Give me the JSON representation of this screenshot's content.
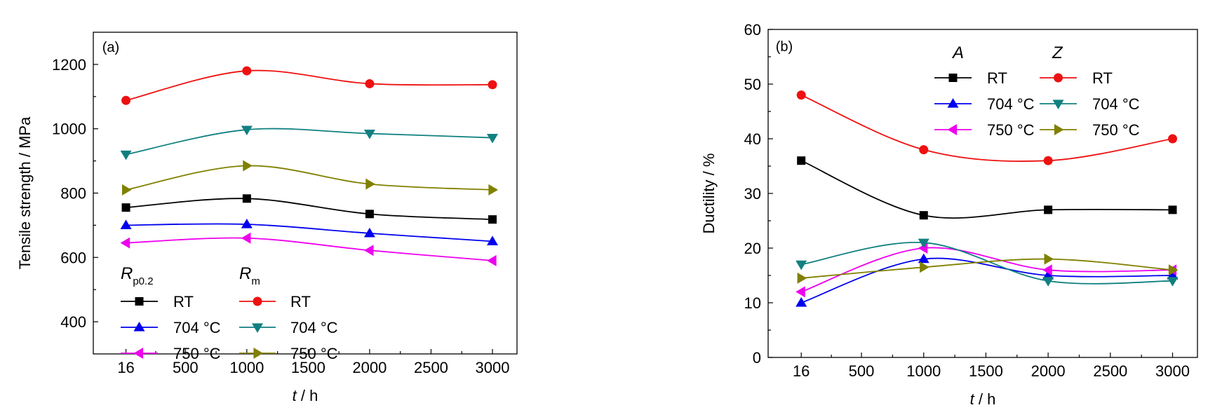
{
  "chart_data": [
    {
      "type": "line",
      "panel_label": "(a)",
      "xlabel_var": "t",
      "xlabel_unit": "/ h",
      "ylabel": "Tensile strength / MPa",
      "xlim": [
        -250,
        3200
      ],
      "ylim": [
        300,
        1300
      ],
      "xticks": [
        16,
        500,
        1000,
        1500,
        2000,
        2500,
        3000
      ],
      "yticks": [
        400,
        600,
        800,
        1000,
        1200
      ],
      "legend_groups": [
        {
          "symbol": "R",
          "subscript": "p0.2"
        },
        {
          "symbol": "R",
          "subscript": "m"
        }
      ],
      "series": [
        {
          "name": "RT",
          "group": 0,
          "color": "#000000",
          "marker": "square",
          "x": [
            16,
            1000,
            2000,
            3000
          ],
          "y": [
            755,
            783,
            735,
            718
          ]
        },
        {
          "name": "704 °C",
          "group": 0,
          "color": "#0000ee",
          "marker": "triangle-up",
          "x": [
            16,
            1000,
            2000,
            3000
          ],
          "y": [
            700,
            703,
            675,
            650
          ]
        },
        {
          "name": "750 °C",
          "group": 0,
          "color": "#ee00ee",
          "marker": "triangle-left",
          "x": [
            16,
            1000,
            2000,
            3000
          ],
          "y": [
            645,
            660,
            622,
            590
          ]
        },
        {
          "name": "RT",
          "group": 1,
          "color": "#ee1111",
          "marker": "circle",
          "x": [
            16,
            1000,
            2000,
            3000
          ],
          "y": [
            1088,
            1180,
            1140,
            1137
          ]
        },
        {
          "name": "704 °C",
          "group": 1,
          "color": "#118080",
          "marker": "triangle-down",
          "x": [
            16,
            1000,
            2000,
            3000
          ],
          "y": [
            920,
            997,
            985,
            972
          ]
        },
        {
          "name": "750 °C",
          "group": 1,
          "color": "#808000",
          "marker": "triangle-right",
          "x": [
            16,
            1000,
            2000,
            3000
          ],
          "y": [
            810,
            885,
            828,
            810
          ]
        }
      ]
    },
    {
      "type": "line",
      "panel_label": "(b)",
      "xlabel_var": "t",
      "xlabel_unit": "/ h",
      "ylabel": "Ductility / %",
      "xlim": [
        -250,
        3200
      ],
      "ylim": [
        0,
        60
      ],
      "xticks": [
        16,
        500,
        1000,
        1500,
        2000,
        2500,
        3000
      ],
      "yticks": [
        0,
        10,
        20,
        30,
        40,
        50,
        60
      ],
      "legend_groups": [
        {
          "symbol": "A",
          "subscript": ""
        },
        {
          "symbol": "Z",
          "subscript": ""
        }
      ],
      "series": [
        {
          "name": "RT",
          "group": 0,
          "color": "#000000",
          "marker": "square",
          "x": [
            16,
            1000,
            2000,
            3000
          ],
          "y": [
            36,
            26,
            27,
            27
          ]
        },
        {
          "name": "704 °C",
          "group": 0,
          "color": "#0000ee",
          "marker": "triangle-up",
          "x": [
            16,
            1000,
            2000,
            3000
          ],
          "y": [
            10,
            18,
            15,
            15
          ]
        },
        {
          "name": "750 °C",
          "group": 0,
          "color": "#ee00ee",
          "marker": "triangle-left",
          "x": [
            16,
            1000,
            2000,
            3000
          ],
          "y": [
            12,
            20,
            16,
            16
          ]
        },
        {
          "name": "RT",
          "group": 1,
          "color": "#ee1111",
          "marker": "circle",
          "x": [
            16,
            1000,
            2000,
            3000
          ],
          "y": [
            48,
            38,
            36,
            40
          ]
        },
        {
          "name": "704 °C",
          "group": 1,
          "color": "#118080",
          "marker": "triangle-down",
          "x": [
            16,
            1000,
            2000,
            3000
          ],
          "y": [
            17,
            21,
            14,
            14
          ]
        },
        {
          "name": "750 °C",
          "group": 1,
          "color": "#808000",
          "marker": "triangle-right",
          "x": [
            16,
            1000,
            2000,
            3000
          ],
          "y": [
            14.5,
            16.5,
            18,
            16
          ]
        }
      ]
    }
  ]
}
